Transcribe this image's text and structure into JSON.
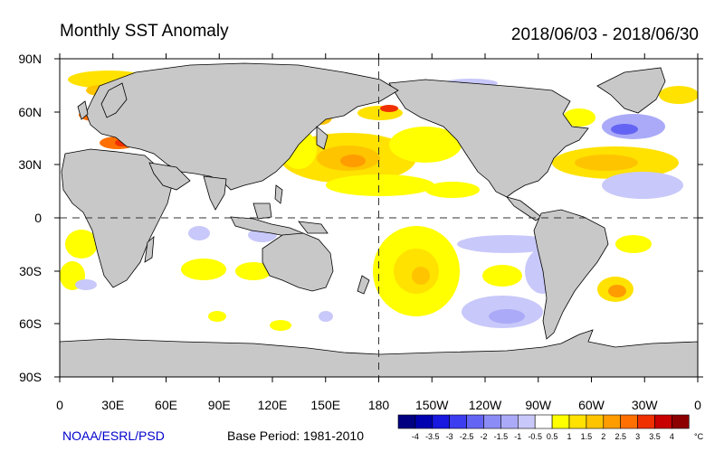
{
  "title": "Monthly SST Anomaly",
  "period": "2018/06/03 - 2018/06/30",
  "credit": "NOAA/ESRL/PSD",
  "base_period": "Base Period: 1981-2010",
  "lat_labels": [
    "90N",
    "60N",
    "30N",
    "0",
    "30S",
    "60S",
    "90S"
  ],
  "lon_labels": [
    "0",
    "30E",
    "60E",
    "90E",
    "120E",
    "150E",
    "180",
    "150W",
    "120W",
    "90W",
    "60W",
    "30W",
    "0"
  ],
  "colorbar": {
    "unit": "°C",
    "labels": [
      "-4",
      "-3.5",
      "-3",
      "-2.5",
      "-2",
      "-1.5",
      "-1",
      "-0.5",
      "0.5",
      "1",
      "1.5",
      "2",
      "2.5",
      "3",
      "3.5",
      "4"
    ],
    "colors": [
      "#000080",
      "#0000b0",
      "#1818e0",
      "#3c3cf0",
      "#6464f4",
      "#8c8cf6",
      "#aaaaf8",
      "#c8c8fa",
      "#ffffff",
      "#ffff00",
      "#ffe200",
      "#ffc400",
      "#ff9c00",
      "#ff7000",
      "#f03000",
      "#c80000",
      "#8c0000"
    ]
  },
  "colors": {
    "land": "#c8c8c8",
    "ocean": "#ffffff",
    "coast": "#000000"
  }
}
